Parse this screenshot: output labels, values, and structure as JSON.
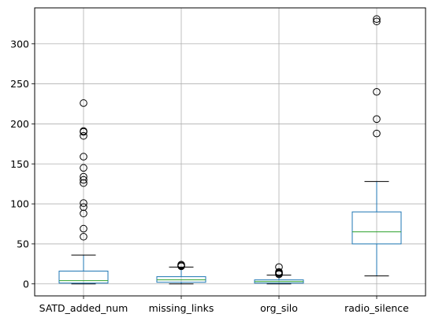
{
  "chart_data": {
    "type": "boxplot",
    "title": "",
    "xlabel": "",
    "ylabel": "",
    "ylim": [
      -15,
      345
    ],
    "yticks": [
      0,
      50,
      100,
      150,
      200,
      250,
      300
    ],
    "grid": true,
    "legend": "none",
    "colors": {
      "box": "#1f77b4",
      "median": "#2ca02c",
      "whisker": "#1f77b4",
      "cap": "#000000",
      "flier": "#000000",
      "grid": "#b0b0b0",
      "axis": "#000000"
    },
    "categories": [
      "SATD_added_num",
      "missing_links",
      "org_silo",
      "radio_silence"
    ],
    "boxes": [
      {
        "name": "SATD_added_num",
        "whislo": 0,
        "q1": 1,
        "med": 4,
        "q3": 16,
        "whishi": 36,
        "fliers": [
          59,
          69,
          88,
          96,
          101,
          126,
          130,
          134,
          145,
          159,
          185,
          190,
          191,
          226
        ]
      },
      {
        "name": "missing_links",
        "whislo": 0,
        "q1": 2,
        "med": 5,
        "q3": 9,
        "whishi": 21,
        "fliers": [
          22,
          23,
          24
        ]
      },
      {
        "name": "org_silo",
        "whislo": 0,
        "q1": 1,
        "med": 3,
        "q3": 5,
        "whishi": 11,
        "fliers": [
          12,
          13,
          14,
          15,
          21
        ]
      },
      {
        "name": "radio_silence",
        "whislo": 10,
        "q1": 50,
        "med": 65,
        "q3": 90,
        "whishi": 128,
        "fliers": [
          188,
          206,
          240,
          328,
          331
        ]
      }
    ]
  }
}
